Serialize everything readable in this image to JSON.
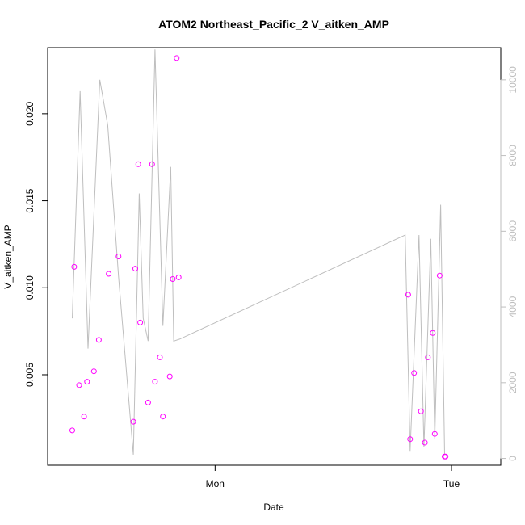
{
  "chart_data": {
    "type": "scatter",
    "title": "ATOM2 Northeast_Pacific_2 V_aitken_AMP",
    "xlabel": "Date",
    "ylabel": "V_aitken_AMP",
    "x_ticks": [
      "Mon",
      "Tue"
    ],
    "y_ticks": [
      "0.005",
      "0.010",
      "0.015",
      "0.020"
    ],
    "y2_ticks": [
      "0",
      "2000",
      "4000",
      "6000",
      "8000",
      "10000"
    ],
    "xlim_hours": [
      -17,
      29
    ],
    "ylim": [
      -0.0002,
      0.0238
    ],
    "y2lim": [
      -180,
      10850
    ],
    "colors": {
      "points": "#ff00ff",
      "line": "#bebebe",
      "axis": "#000000",
      "right_axis": "#bebebe"
    },
    "series": [
      {
        "values": [
          {
            "x": -14.5,
            "y": 0.0018
          },
          {
            "x": -14.3,
            "y": 0.0112
          },
          {
            "x": -13.8,
            "y": 0.0044
          },
          {
            "x": -13.3,
            "y": 0.0026
          },
          {
            "x": -13.0,
            "y": 0.0046
          },
          {
            "x": -12.3,
            "y": 0.0052
          },
          {
            "x": -11.8,
            "y": 0.007
          },
          {
            "x": -10.8,
            "y": 0.0108
          },
          {
            "x": -9.8,
            "y": 0.0118
          },
          {
            "x": -8.3,
            "y": 0.0023
          },
          {
            "x": -8.1,
            "y": 0.0111
          },
          {
            "x": -7.8,
            "y": 0.0171
          },
          {
            "x": -7.6,
            "y": 0.008
          },
          {
            "x": -6.8,
            "y": 0.0034
          },
          {
            "x": -6.4,
            "y": 0.0171
          },
          {
            "x": -6.1,
            "y": 0.0046
          },
          {
            "x": -5.6,
            "y": 0.006
          },
          {
            "x": -5.3,
            "y": 0.0026
          },
          {
            "x": -4.6,
            "y": 0.0049
          },
          {
            "x": -4.3,
            "y": 0.0105
          },
          {
            "x": -3.9,
            "y": 0.0232
          },
          {
            "x": -3.7,
            "y": 0.0106
          },
          {
            "x": 19.6,
            "y": 0.0096
          },
          {
            "x": 19.8,
            "y": 0.0013
          },
          {
            "x": 20.2,
            "y": 0.0051
          },
          {
            "x": 20.9,
            "y": 0.0029
          },
          {
            "x": 21.3,
            "y": 0.0011
          },
          {
            "x": 21.6,
            "y": 0.006
          },
          {
            "x": 22.1,
            "y": 0.0074
          },
          {
            "x": 22.3,
            "y": 0.0016
          },
          {
            "x": 22.8,
            "y": 0.0107
          },
          {
            "x": 23.3,
            "y": 0.0003
          },
          {
            "x": 23.4,
            "y": 0.0003
          }
        ]
      },
      {
        "axis": "right",
        "values": [
          {
            "x": -14.5,
            "y": 3700
          },
          {
            "x": -13.7,
            "y": 9700
          },
          {
            "x": -12.9,
            "y": 2900
          },
          {
            "x": -11.7,
            "y": 10000
          },
          {
            "x": -10.9,
            "y": 8800
          },
          {
            "x": -9.8,
            "y": 4800
          },
          {
            "x": -8.3,
            "y": 100
          },
          {
            "x": -7.7,
            "y": 7000
          },
          {
            "x": -7.3,
            "y": 3700
          },
          {
            "x": -6.8,
            "y": 3100
          },
          {
            "x": -6.1,
            "y": 10800
          },
          {
            "x": -5.3,
            "y": 3500
          },
          {
            "x": -4.5,
            "y": 7700
          },
          {
            "x": -4.2,
            "y": 3100
          },
          {
            "x": -3.6,
            "y": 3150
          },
          {
            "x": 19.3,
            "y": 5900
          },
          {
            "x": 19.8,
            "y": 200
          },
          {
            "x": 20.7,
            "y": 5900
          },
          {
            "x": 21.2,
            "y": 300
          },
          {
            "x": 21.9,
            "y": 5800
          },
          {
            "x": 22.3,
            "y": 500
          },
          {
            "x": 22.9,
            "y": 6700
          },
          {
            "x": 23.3,
            "y": 100
          },
          {
            "x": 23.4,
            "y": 100
          }
        ]
      }
    ]
  }
}
